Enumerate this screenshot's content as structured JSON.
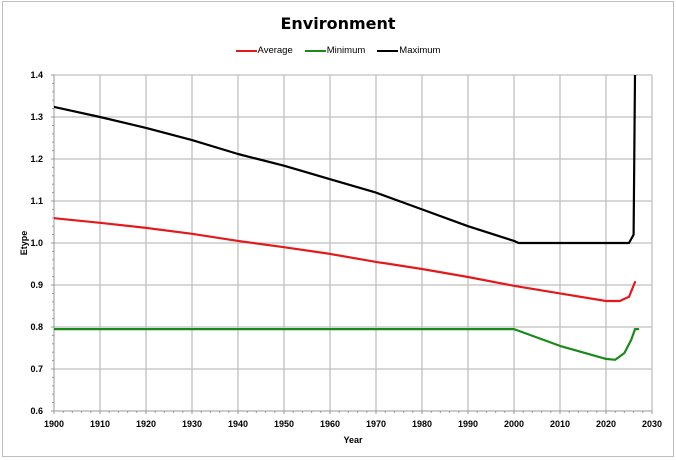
{
  "chart_data": {
    "type": "line",
    "title": "Environment",
    "xlabel": "Year",
    "ylabel": "Etype",
    "xlim": [
      1900,
      2030
    ],
    "ylim": [
      0.6,
      1.4
    ],
    "xticks": [
      "1900",
      "1910",
      "1920",
      "1930",
      "1940",
      "1950",
      "1960",
      "1970",
      "1980",
      "1990",
      "2000",
      "2010",
      "2020",
      "2030"
    ],
    "yticks": [
      "0.6",
      "0.7",
      "0.8",
      "0.9",
      "1.0",
      "1.1",
      "1.2",
      "1.3",
      "1.4"
    ],
    "grid": true,
    "legend_position": "top-center",
    "series": [
      {
        "name": "Average",
        "color": "#e31a1c",
        "x": [
          1900,
          1910,
          1920,
          1930,
          1940,
          1950,
          1960,
          1970,
          1980,
          1990,
          2000,
          2010,
          2020,
          2023,
          2025,
          2026.3
        ],
        "y": [
          1.059,
          1.048,
          1.036,
          1.022,
          1.005,
          0.99,
          0.974,
          0.955,
          0.938,
          0.919,
          0.898,
          0.88,
          0.862,
          0.862,
          0.872,
          0.907
        ]
      },
      {
        "name": "Minimum",
        "color": "#1a8a1a",
        "x": [
          1900,
          2000,
          2010,
          2020,
          2022,
          2024,
          2025.5,
          2026.3,
          2027
        ],
        "y": [
          0.795,
          0.795,
          0.755,
          0.724,
          0.722,
          0.738,
          0.77,
          0.795,
          0.795
        ]
      },
      {
        "name": "Maximum",
        "color": "#000000",
        "x": [
          1900,
          1910,
          1920,
          1930,
          1940,
          1950,
          1960,
          1970,
          1980,
          1990,
          2000,
          2001,
          2025,
          2026,
          2026.3
        ],
        "y": [
          1.324,
          1.3,
          1.274,
          1.245,
          1.212,
          1.184,
          1.152,
          1.12,
          1.08,
          1.04,
          1.005,
          1.0,
          1.0,
          1.02,
          1.4
        ]
      }
    ]
  }
}
